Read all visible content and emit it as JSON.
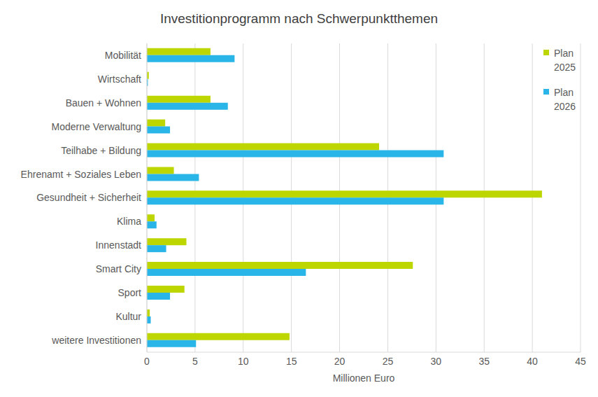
{
  "chart_data": {
    "type": "bar",
    "title": "Investitionprogramm nach Schwerpunktthemen",
    "orientation": "horizontal",
    "x_label": "Millionen Euro",
    "categories": [
      "Mobilität",
      "Wirtschaft",
      "Bauen + Wohnen",
      "Moderne Verwaltung",
      "Teilhabe + Bildung",
      "Ehrenamt + Soziales Leben",
      "Gesundheit + Sicherheit",
      "Klima",
      "Innenstadt",
      "Smart City",
      "Sport",
      "Kultur",
      "weitere Investitionen"
    ],
    "series": [
      {
        "name": "Plan 2025",
        "color": "#bed600",
        "values": [
          6.6,
          0.2,
          6.6,
          1.9,
          24.1,
          2.8,
          41.0,
          0.8,
          4.1,
          27.6,
          3.9,
          0.3,
          14.8
        ]
      },
      {
        "name": "Plan 2026",
        "color": "#29b5e8",
        "values": [
          9.1,
          0.1,
          8.4,
          2.4,
          30.8,
          5.4,
          30.8,
          1.0,
          2.0,
          16.5,
          2.4,
          0.4,
          5.1
        ]
      }
    ],
    "xlim": [
      0,
      45
    ],
    "xticks": [
      0,
      5,
      10,
      15,
      20,
      25,
      30,
      35,
      40,
      45
    ],
    "grid": true,
    "legend": "top-right"
  }
}
